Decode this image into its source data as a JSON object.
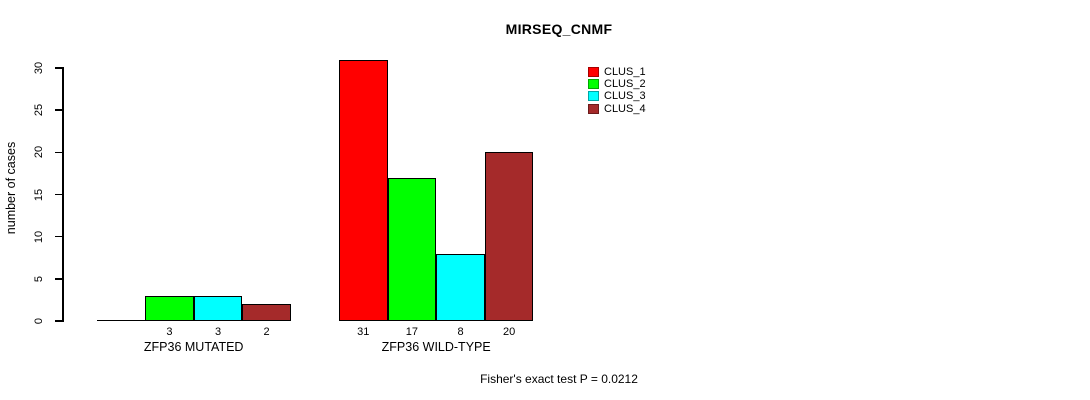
{
  "chart_data": {
    "type": "bar",
    "title": "MIRSEQ_CNMF",
    "ylabel": "number of cases",
    "xlabel": "",
    "ylim": [
      0,
      30
    ],
    "yticks": [
      0,
      5,
      10,
      15,
      20,
      25,
      30
    ],
    "grid": false,
    "legend_position": "top-right",
    "categories": [
      "ZFP36 MUTATED",
      "ZFP36 WILD-TYPE"
    ],
    "series": [
      {
        "name": "CLUS_1",
        "color": "#FF0000",
        "values": [
          0,
          31
        ]
      },
      {
        "name": "CLUS_2",
        "color": "#00FF00",
        "values": [
          3,
          17
        ]
      },
      {
        "name": "CLUS_3",
        "color": "#00FFFF",
        "values": [
          3,
          8
        ]
      },
      {
        "name": "CLUS_4",
        "color": "#A52A2A",
        "values": [
          2,
          20
        ]
      }
    ],
    "value_labels": [
      [
        "",
        "3",
        "3",
        "2"
      ],
      [
        "31",
        "17",
        "8",
        "20"
      ]
    ],
    "annotation": "Fisher's exact test P = 0.0212",
    "bar_border_color": "#000000",
    "background": "#FFFFFF"
  }
}
